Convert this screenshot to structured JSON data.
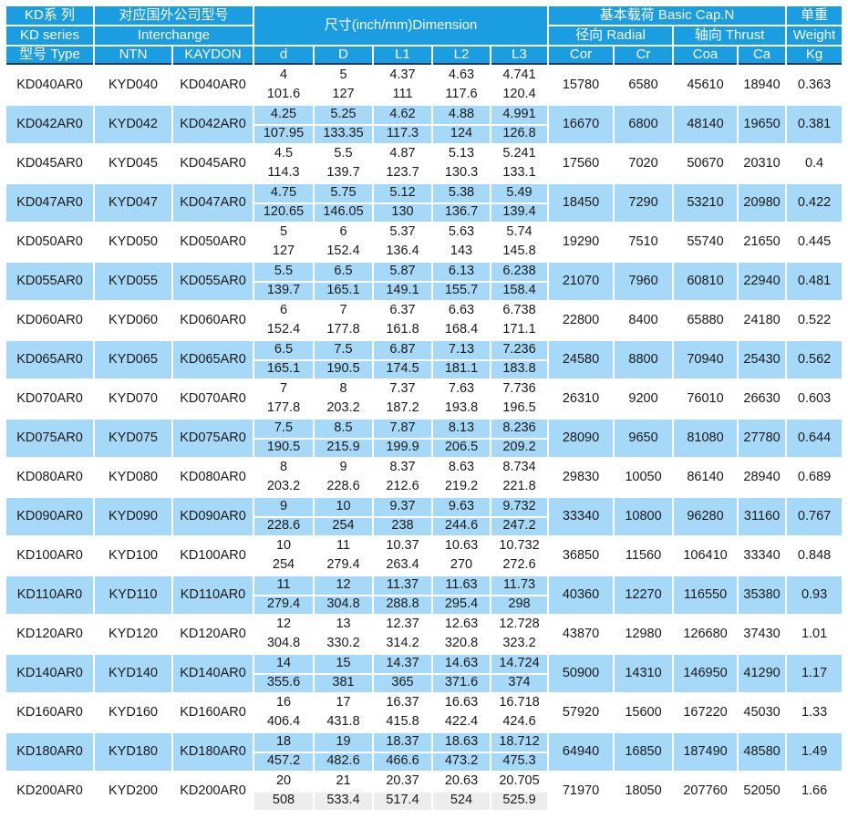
{
  "colors": {
    "header_blue": "#1b9de2",
    "row_light_blue": "#a6d9f7",
    "header_bottom_border": "#1c3a57",
    "last_row_mm_gray": "#ededed",
    "text": "#1a1a1a"
  },
  "table": {
    "header": {
      "series": {
        "line1": "KD系 列",
        "line2": "KD series",
        "line3": "型号 Type"
      },
      "interchange": {
        "title_cn": "对应国外公司型号",
        "title_en": "Interchange",
        "cols": [
          "NTN",
          "KAYDON"
        ]
      },
      "dimension": {
        "title": "尺寸(inch/mm)Dimension",
        "cols": [
          "d",
          "D",
          "L1",
          "L2",
          "L3"
        ]
      },
      "capacity": {
        "title": "基本载荷 Basic Cap.N",
        "radial": "径向 Radial",
        "thrust": "轴向 Thrust",
        "cols": [
          "Cor",
          "Cr",
          "Coa",
          "Ca"
        ]
      },
      "weight": {
        "line1": "单重",
        "line2": "Weight",
        "line3": "Kg"
      }
    },
    "rows": [
      {
        "type": "KD040AR0",
        "ntn": "KYD040",
        "kaydon": "KD040AR0",
        "inch": [
          "4",
          "5",
          "4.37",
          "4.63",
          "4.741"
        ],
        "mm": [
          "101.6",
          "127",
          "111",
          "117.6",
          "120.4"
        ],
        "cor": "15780",
        "cr": "6580",
        "coa": "45610",
        "ca": "18940",
        "kg": "0.363"
      },
      {
        "type": "KD042AR0",
        "ntn": "KYD042",
        "kaydon": "KD042AR0",
        "inch": [
          "4.25",
          "5.25",
          "4.62",
          "4.88",
          "4.991"
        ],
        "mm": [
          "107.95",
          "133.35",
          "117.3",
          "124",
          "126.8"
        ],
        "cor": "16670",
        "cr": "6800",
        "coa": "48140",
        "ca": "19650",
        "kg": "0.381"
      },
      {
        "type": "KD045AR0",
        "ntn": "KYD045",
        "kaydon": "KD045AR0",
        "inch": [
          "4.5",
          "5.5",
          "4.87",
          "5.13",
          "5.241"
        ],
        "mm": [
          "114.3",
          "139.7",
          "123.7",
          "130.3",
          "133.1"
        ],
        "cor": "17560",
        "cr": "7020",
        "coa": "50670",
        "ca": "20310",
        "kg": "0.4"
      },
      {
        "type": "KD047AR0",
        "ntn": "KYD047",
        "kaydon": "KD047AR0",
        "inch": [
          "4.75",
          "5.75",
          "5.12",
          "5.38",
          "5.49"
        ],
        "mm": [
          "120.65",
          "146.05",
          "130",
          "136.7",
          "139.4"
        ],
        "cor": "18450",
        "cr": "7290",
        "coa": "53210",
        "ca": "20980",
        "kg": "0.422"
      },
      {
        "type": "KD050AR0",
        "ntn": "KYD050",
        "kaydon": "KD050AR0",
        "inch": [
          "5",
          "6",
          "5.37",
          "5.63",
          "5.74"
        ],
        "mm": [
          "127",
          "152.4",
          "136.4",
          "143",
          "145.8"
        ],
        "cor": "19290",
        "cr": "7510",
        "coa": "55740",
        "ca": "21650",
        "kg": "0.445"
      },
      {
        "type": "KD055AR0",
        "ntn": "KYD055",
        "kaydon": "KD055AR0",
        "inch": [
          "5.5",
          "6.5",
          "5.87",
          "6.13",
          "6.238"
        ],
        "mm": [
          "139.7",
          "165.1",
          "149.1",
          "155.7",
          "158.4"
        ],
        "cor": "21070",
        "cr": "7960",
        "coa": "60810",
        "ca": "22940",
        "kg": "0.481"
      },
      {
        "type": "KD060AR0",
        "ntn": "KYD060",
        "kaydon": "KD060AR0",
        "inch": [
          "6",
          "7",
          "6.37",
          "6.63",
          "6.738"
        ],
        "mm": [
          "152.4",
          "177.8",
          "161.8",
          "168.4",
          "171.1"
        ],
        "cor": "22800",
        "cr": "8400",
        "coa": "65880",
        "ca": "24180",
        "kg": "0.522"
      },
      {
        "type": "KD065AR0",
        "ntn": "KYD065",
        "kaydon": "KD065AR0",
        "inch": [
          "6.5",
          "7.5",
          "6.87",
          "7.13",
          "7.236"
        ],
        "mm": [
          "165.1",
          "190.5",
          "174.5",
          "181.1",
          "183.8"
        ],
        "cor": "24580",
        "cr": "8800",
        "coa": "70940",
        "ca": "25430",
        "kg": "0.562"
      },
      {
        "type": "KD070AR0",
        "ntn": "KYD070",
        "kaydon": "KD070AR0",
        "inch": [
          "7",
          "8",
          "7.37",
          "7.63",
          "7.736"
        ],
        "mm": [
          "177.8",
          "203.2",
          "187.2",
          "193.8",
          "196.5"
        ],
        "cor": "26310",
        "cr": "9200",
        "coa": "76010",
        "ca": "26630",
        "kg": "0.603"
      },
      {
        "type": "KD075AR0",
        "ntn": "KYD075",
        "kaydon": "KD075AR0",
        "inch": [
          "7.5",
          "8.5",
          "7.87",
          "8.13",
          "8.236"
        ],
        "mm": [
          "190.5",
          "215.9",
          "199.9",
          "206.5",
          "209.2"
        ],
        "cor": "28090",
        "cr": "9650",
        "coa": "81080",
        "ca": "27780",
        "kg": "0.644"
      },
      {
        "type": "KD080AR0",
        "ntn": "KYD080",
        "kaydon": "KD080AR0",
        "inch": [
          "8",
          "9",
          "8.37",
          "8.63",
          "8.734"
        ],
        "mm": [
          "203.2",
          "228.6",
          "212.6",
          "219.2",
          "221.8"
        ],
        "cor": "29830",
        "cr": "10050",
        "coa": "86140",
        "ca": "28940",
        "kg": "0.689"
      },
      {
        "type": "KD090AR0",
        "ntn": "KYD090",
        "kaydon": "KD090AR0",
        "inch": [
          "9",
          "10",
          "9.37",
          "9.63",
          "9.732"
        ],
        "mm": [
          "228.6",
          "254",
          "238",
          "244.6",
          "247.2"
        ],
        "cor": "33340",
        "cr": "10800",
        "coa": "96280",
        "ca": "31160",
        "kg": "0.767"
      },
      {
        "type": "KD100AR0",
        "ntn": "KYD100",
        "kaydon": "KD100AR0",
        "inch": [
          "10",
          "11",
          "10.37",
          "10.63",
          "10.732"
        ],
        "mm": [
          "254",
          "279.4",
          "263.4",
          "270",
          "272.6"
        ],
        "cor": "36850",
        "cr": "11560",
        "coa": "106410",
        "ca": "33340",
        "kg": "0.848"
      },
      {
        "type": "KD110AR0",
        "ntn": "KYD110",
        "kaydon": "KD110AR0",
        "inch": [
          "11",
          "12",
          "11.37",
          "11.63",
          "11.73"
        ],
        "mm": [
          "279.4",
          "304.8",
          "288.8",
          "295.4",
          "298"
        ],
        "cor": "40360",
        "cr": "12270",
        "coa": "116550",
        "ca": "35380",
        "kg": "0.93"
      },
      {
        "type": "KD120AR0",
        "ntn": "KYD120",
        "kaydon": "KD120AR0",
        "inch": [
          "12",
          "13",
          "12.37",
          "12.63",
          "12.728"
        ],
        "mm": [
          "304.8",
          "330.2",
          "314.2",
          "320.8",
          "323.2"
        ],
        "cor": "43870",
        "cr": "12980",
        "coa": "126680",
        "ca": "37430",
        "kg": "1.01"
      },
      {
        "type": "KD140AR0",
        "ntn": "KYD140",
        "kaydon": "KD140AR0",
        "inch": [
          "14",
          "15",
          "14.37",
          "14.63",
          "14.724"
        ],
        "mm": [
          "355.6",
          "381",
          "365",
          "371.6",
          "374"
        ],
        "cor": "50900",
        "cr": "14310",
        "coa": "146950",
        "ca": "41290",
        "kg": "1.17"
      },
      {
        "type": "KD160AR0",
        "ntn": "KYD160",
        "kaydon": "KD160AR0",
        "inch": [
          "16",
          "17",
          "16.37",
          "16.63",
          "16.718"
        ],
        "mm": [
          "406.4",
          "431.8",
          "415.8",
          "422.4",
          "424.6"
        ],
        "cor": "57920",
        "cr": "15600",
        "coa": "167220",
        "ca": "45030",
        "kg": "1.33"
      },
      {
        "type": "KD180AR0",
        "ntn": "KYD180",
        "kaydon": "KD180AR0",
        "inch": [
          "18",
          "19",
          "18.37",
          "18.63",
          "18.712"
        ],
        "mm": [
          "457.2",
          "482.6",
          "466.6",
          "473.2",
          "475.3"
        ],
        "cor": "64940",
        "cr": "16850",
        "coa": "187490",
        "ca": "48580",
        "kg": "1.49"
      },
      {
        "type": "KD200AR0",
        "ntn": "KYD200",
        "kaydon": "KD200AR0",
        "inch": [
          "20",
          "21",
          "20.37",
          "20.63",
          "20.705"
        ],
        "mm": [
          "508",
          "533.4",
          "517.4",
          "524",
          "525.9"
        ],
        "cor": "71970",
        "cr": "18050",
        "coa": "207760",
        "ca": "52050",
        "kg": "1.66"
      }
    ]
  }
}
